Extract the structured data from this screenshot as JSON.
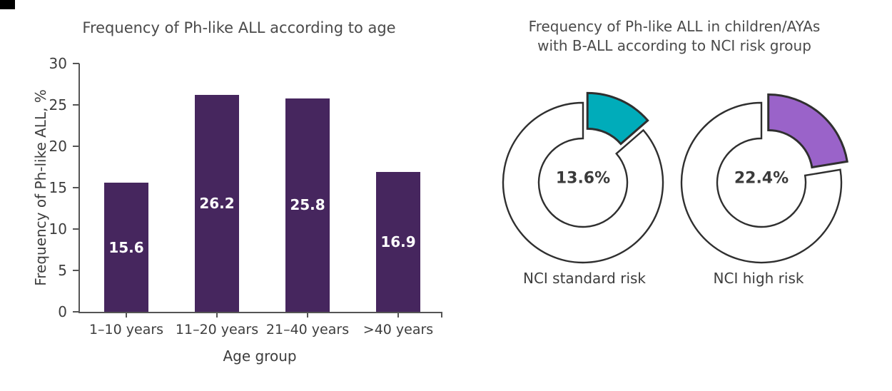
{
  "page": {
    "background": "#ffffff",
    "corner_mark_color": "#000000"
  },
  "chart_data": [
    {
      "type": "bar",
      "title": "Frequency of Ph-like ALL according to age",
      "xlabel": "Age group",
      "ylabel": "Frequency of Ph-like ALL, %",
      "categories": [
        "1–10 years",
        "11–20 years",
        "21–40 years",
        ">40 years"
      ],
      "values": [
        15.6,
        26.2,
        25.8,
        16.9
      ],
      "value_labels": [
        "15.6",
        "26.2",
        "25.8",
        "16.9"
      ],
      "ylim": [
        0,
        30
      ],
      "yticks": [
        0,
        5,
        10,
        15,
        20,
        25,
        30
      ],
      "grid": false,
      "legend": "none",
      "bar_color": "#46265E",
      "value_label_color": "#ffffff",
      "axis_color": "#555555"
    },
    {
      "type": "pie",
      "subtype": "exploded-donut-pair",
      "title": "Frequency of Ph-like ALL in children/AYAs with B-ALL according to NCI risk group",
      "title_lines": [
        "Frequency of Ph-like ALL in children/AYAs",
        "with B-ALL according to NCI risk group"
      ],
      "ring_fill": "#ffffff",
      "outline_color": "#2f2f2f",
      "donuts": [
        {
          "label": "NCI standard risk",
          "percent": 13.6,
          "value_label": "13.6%",
          "slice_color": "#00ACBA"
        },
        {
          "label": "NCI high risk",
          "percent": 22.4,
          "value_label": "22.4%",
          "slice_color": "#9A63C9"
        }
      ]
    }
  ]
}
